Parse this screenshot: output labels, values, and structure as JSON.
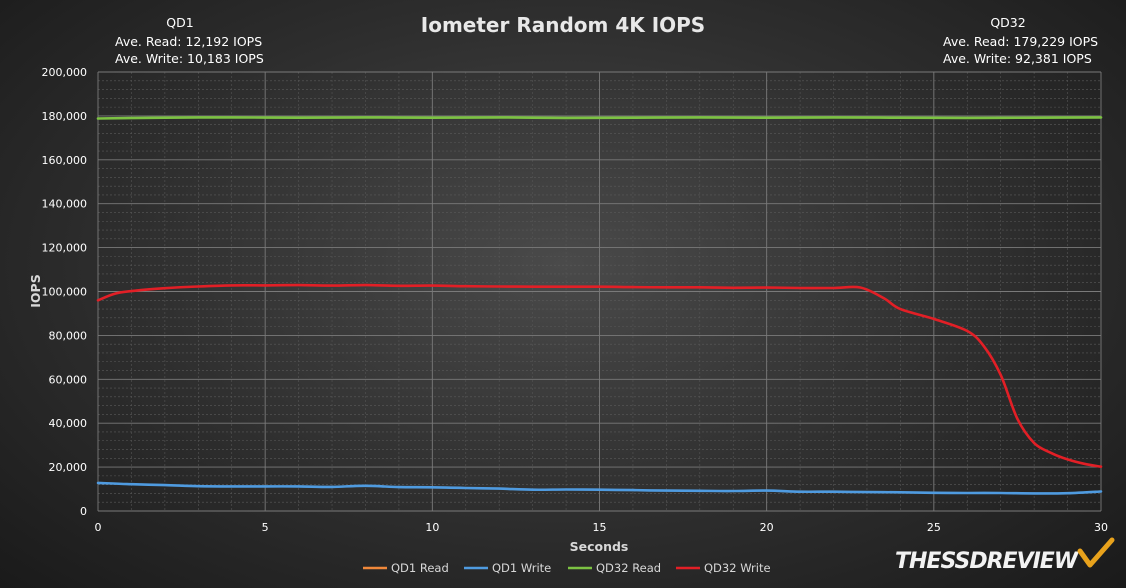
{
  "chart_data": {
    "type": "line",
    "title": "Iometer Random 4K IOPS",
    "xlabel": "Seconds",
    "ylabel": "IOPS",
    "xlim": [
      0,
      30
    ],
    "ylim": [
      0,
      200000
    ],
    "x_ticks": [
      0,
      5,
      10,
      15,
      20,
      25,
      30
    ],
    "y_ticks": [
      0,
      20000,
      40000,
      60000,
      80000,
      100000,
      120000,
      140000,
      160000,
      180000,
      200000
    ],
    "y_tick_labels": [
      "0",
      "20,000",
      "40,000",
      "60,000",
      "80,000",
      "100,000",
      "120,000",
      "140,000",
      "160,000",
      "180,000",
      "200,000"
    ],
    "grid": true,
    "legend_position": "bottom",
    "annotations": {
      "qd1": {
        "heading": "QD1",
        "read": "Ave. Read: 12,192  IOPS",
        "write": "Ave. Write: 10,183  IOPS"
      },
      "qd32": {
        "heading": "QD32",
        "read": "Ave. Read: 179,229  IOPS",
        "write": "Ave. Write: 92,381  IOPS"
      }
    },
    "series": [
      {
        "name": "QD1 Read",
        "color": "#f0883a",
        "x": [],
        "y": []
      },
      {
        "name": "QD1 Write",
        "color": "#4f9be0",
        "x": [
          0,
          1,
          2,
          3,
          4,
          5,
          6,
          7,
          8,
          9,
          10,
          11,
          12,
          13,
          14,
          15,
          16,
          17,
          18,
          19,
          20,
          21,
          22,
          23,
          24,
          25,
          26,
          27,
          28,
          29,
          30
        ],
        "y": [
          12800,
          12200,
          11800,
          11300,
          11200,
          11200,
          11200,
          11000,
          11500,
          10900,
          10800,
          10500,
          10200,
          9700,
          9800,
          9700,
          9500,
          9300,
          9200,
          9100,
          9300,
          8800,
          8800,
          8600,
          8500,
          8300,
          8200,
          8200,
          8000,
          8100,
          8900
        ]
      },
      {
        "name": "QD32 Read",
        "color": "#7cc243",
        "x": [
          0,
          2,
          4,
          6,
          8,
          10,
          12,
          14,
          16,
          18,
          20,
          22,
          24,
          26,
          28,
          30
        ],
        "y": [
          178800,
          179200,
          179300,
          179200,
          179300,
          179200,
          179300,
          179100,
          179200,
          179300,
          179200,
          179300,
          179200,
          179100,
          179200,
          179300
        ]
      },
      {
        "name": "QD32 Write",
        "color": "#e21f26",
        "x": [
          0,
          0.5,
          1,
          2,
          3,
          4,
          5,
          6,
          7,
          8,
          9,
          10,
          11,
          12,
          13,
          14,
          15,
          16,
          17,
          18,
          19,
          20,
          21,
          22,
          22.8,
          23.5,
          24,
          25,
          26,
          26.5,
          27,
          27.5,
          28,
          28.5,
          29,
          29.5,
          30
        ],
        "y": [
          96000,
          99000,
          100200,
          101500,
          102300,
          102800,
          102800,
          102900,
          102700,
          102900,
          102600,
          102700,
          102400,
          102300,
          102200,
          102200,
          102200,
          102000,
          101900,
          101900,
          101700,
          101800,
          101600,
          101600,
          101800,
          97000,
          92000,
          87500,
          82000,
          75000,
          62000,
          42000,
          31000,
          26500,
          23500,
          21500,
          20200
        ]
      }
    ]
  }
}
